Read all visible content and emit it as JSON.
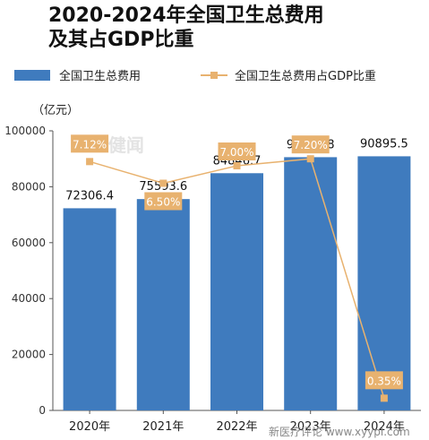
{
  "header": {
    "title_line1": "2020-2024年全国卫生总费用",
    "title_line2": "及其占GDP比重"
  },
  "legend": {
    "bar_label": "全国卫生总费用",
    "line_label": "全国卫生总费用占GDP比重"
  },
  "unit_label": "（亿元）",
  "watermark": "8 健闻",
  "source_text": "新医疗评论 www.xyypl.com",
  "colors": {
    "bar": "#3F7BBE",
    "line": "#E8B26F",
    "pct_box": "#E8B26F",
    "pct_text": "#ffffff"
  },
  "chart_data": {
    "type": "bar",
    "categories": [
      "2020年",
      "2021年",
      "2022年",
      "2023年",
      "2024年"
    ],
    "ylim": [
      0,
      100000
    ],
    "yticks": [
      0,
      20000,
      40000,
      60000,
      80000,
      100000
    ],
    "ylabel": "（亿元）",
    "grid": false,
    "series": [
      {
        "name": "全国卫生总费用",
        "type": "bar",
        "values": [
          72306.4,
          75593.6,
          84846.7,
          90575.8,
          90895.5
        ],
        "labels": [
          "72306.4",
          "75593.6",
          "84846.7",
          "90575.8",
          "90895.5"
        ]
      },
      {
        "name": "全国卫生总费用占GDP比重",
        "type": "line",
        "values": [
          7.12,
          6.5,
          7.0,
          7.2,
          0.35
        ],
        "labels": [
          "7.12%",
          "6.50%",
          "7.00%",
          "7.20%",
          "0.35%"
        ]
      }
    ]
  }
}
